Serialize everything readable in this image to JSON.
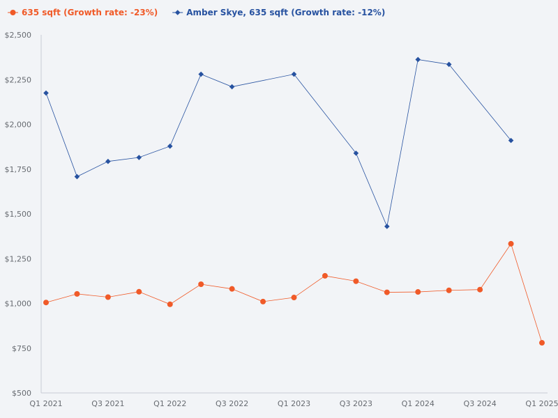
{
  "chart_data": {
    "type": "line",
    "title": "",
    "xlabel": "",
    "ylabel": "",
    "ylim": [
      500,
      2500
    ],
    "yticks": [
      500,
      750,
      1000,
      1250,
      1500,
      1750,
      2000,
      2250,
      2500
    ],
    "ytick_labels": [
      "$500",
      "$750",
      "$1,000",
      "$1,250",
      "$1,500",
      "$1,750",
      "$2,000",
      "$2,250",
      "$2,500"
    ],
    "x_count": 17,
    "xticks": [
      {
        "index": 0,
        "label": "Q1 2021"
      },
      {
        "index": 2,
        "label": "Q3 2021"
      },
      {
        "index": 4,
        "label": "Q1 2022"
      },
      {
        "index": 6,
        "label": "Q3 2022"
      },
      {
        "index": 8,
        "label": "Q1 2023"
      },
      {
        "index": 10,
        "label": "Q3 2023"
      },
      {
        "index": 12,
        "label": "Q1 2024"
      },
      {
        "index": 14,
        "label": "Q3 2024"
      },
      {
        "index": 16,
        "label": "Q1 2025"
      }
    ],
    "legend_position": "top-left",
    "series": [
      {
        "name": "635 sqft (Growth rate: -23%)",
        "color": "#f05a28",
        "marker": "circle",
        "x": [
          0,
          1,
          2,
          3,
          4,
          5,
          6,
          7,
          8,
          9,
          10,
          11,
          12,
          13,
          14,
          15,
          16
        ],
        "values": [
          1005,
          1053,
          1035,
          1065,
          995,
          1107,
          1081,
          1010,
          1033,
          1154,
          1124,
          1062,
          1064,
          1073,
          1077,
          1333,
          780
        ]
      },
      {
        "name": "Amber Skye, 635 sqft (Growth rate: -12%)",
        "color": "#2752a0",
        "marker": "diamond",
        "x": [
          0,
          1,
          2,
          3,
          4,
          5,
          6,
          8,
          10,
          11,
          12,
          13,
          15
        ],
        "values": [
          2175,
          1708,
          1793,
          1815,
          1878,
          2280,
          2210,
          2280,
          1839,
          1430,
          2362,
          2335,
          1910
        ]
      }
    ]
  }
}
